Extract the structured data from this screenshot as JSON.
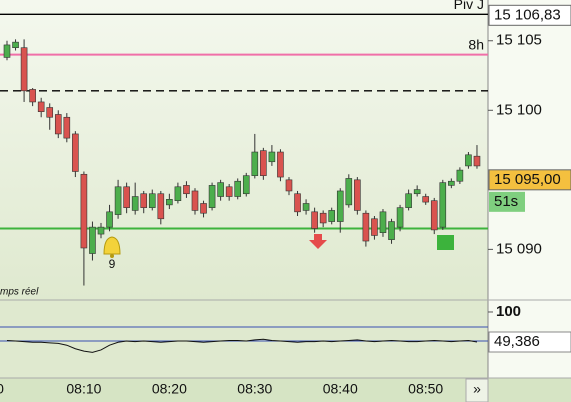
{
  "chart_data": [
    {
      "type": "candlestick",
      "annotation": "mps réel",
      "left_time_label": "0",
      "categories": [
        null,
        null,
        null,
        null,
        null,
        null,
        null,
        null,
        null,
        "08:10",
        null,
        null,
        null,
        null,
        null,
        null,
        null,
        null,
        null,
        "08:20",
        null,
        null,
        null,
        null,
        null,
        null,
        null,
        null,
        null,
        "08:30",
        null,
        null,
        null,
        null,
        null,
        null,
        null,
        null,
        null,
        "08:40",
        null,
        null,
        null,
        null,
        null,
        null,
        null,
        null,
        null,
        "08:50",
        null,
        null,
        null,
        null,
        null,
        null
      ],
      "open": [
        15103.8,
        15104.5,
        15104.5,
        15101.5,
        15100.6,
        15100.2,
        15099.7,
        15099.5,
        15098.3,
        15095.4,
        15089.7,
        15091.1,
        15091.6,
        15092.5,
        15094.5,
        15092.8,
        15094.0,
        15093.0,
        15094.0,
        15093.2,
        15093.5,
        15094.6,
        15094.2,
        15093.3,
        15093.0,
        15093.8,
        15094.5,
        15093.8,
        15094.0,
        15095.3,
        15097.1,
        15096.3,
        15097.0,
        15095.0,
        15094.0,
        15092.8,
        15092.7,
        15092.6,
        15092.0,
        15092.0,
        15093.2,
        15095.0,
        15092.6,
        15092.2,
        15091.2,
        15090.7,
        15091.6,
        15093.0,
        15094.0,
        15093.8,
        15093.5,
        15091.6,
        15094.6,
        15094.9,
        15096.0,
        15096.7
      ],
      "high": [
        15105.0,
        15105.1,
        15105.1,
        15101.6,
        15100.9,
        15100.5,
        15100.0,
        15099.8,
        15098.5,
        15095.6,
        15092.0,
        15091.9,
        15093.2,
        15095.0,
        15094.8,
        15094.8,
        15094.2,
        15094.3,
        15094.2,
        15094.0,
        15094.8,
        15094.9,
        15094.4,
        15093.5,
        15094.8,
        15095.0,
        15094.7,
        15095.1,
        15095.5,
        15098.3,
        15097.3,
        15097.5,
        15097.2,
        15095.2,
        15094.2,
        15093.6,
        15093.0,
        15092.8,
        15093.0,
        15094.4,
        15095.4,
        15095.2,
        15092.8,
        15092.4,
        15092.9,
        15092.2,
        15093.2,
        15094.3,
        15094.6,
        15094.0,
        15093.7,
        15095.0,
        15095.1,
        15095.9,
        15097.0,
        15097.5
      ],
      "low": [
        15103.6,
        15104.3,
        15100.6,
        15100.3,
        15099.5,
        15098.6,
        15098.0,
        15097.7,
        15095.2,
        15087.4,
        15089.2,
        15090.8,
        15091.3,
        15092.2,
        15092.6,
        15092.5,
        15092.6,
        15092.8,
        15091.8,
        15092.9,
        15093.3,
        15093.7,
        15092.5,
        15092.3,
        15092.8,
        15093.5,
        15093.5,
        15093.6,
        15093.8,
        15095.1,
        15095.0,
        15096.0,
        15094.9,
        15093.9,
        15092.4,
        15092.5,
        15091.2,
        15091.6,
        15091.8,
        15091.2,
        15093.0,
        15092.5,
        15090.2,
        15090.7,
        15090.9,
        15090.4,
        15091.3,
        15092.8,
        15093.8,
        15093.2,
        15091.1,
        15091.4,
        15094.4,
        15094.7,
        15095.8,
        15095.8
      ],
      "close": [
        15104.7,
        15104.9,
        15101.4,
        15100.6,
        15099.9,
        15099.5,
        15098.3,
        15098.0,
        15095.6,
        15090.1,
        15091.6,
        15091.6,
        15092.7,
        15094.5,
        15093.0,
        15093.8,
        15093.0,
        15094.0,
        15092.2,
        15093.6,
        15094.5,
        15094.0,
        15092.8,
        15092.6,
        15094.6,
        15094.8,
        15093.8,
        15094.9,
        15095.3,
        15097.0,
        15095.3,
        15097.0,
        15095.2,
        15094.2,
        15092.7,
        15093.3,
        15091.5,
        15091.9,
        15092.8,
        15094.2,
        15095.1,
        15092.8,
        15090.6,
        15091.0,
        15092.7,
        15092.0,
        15093.0,
        15094.0,
        15094.3,
        15093.4,
        15091.4,
        15094.8,
        15094.9,
        15095.7,
        15096.8,
        15096.0
      ],
      "up_color": "#4cae4c",
      "down_color": "#d9534f",
      "ylim": [
        15086.36,
        15107.93
      ],
      "yticks": [
        {
          "value": 15105,
          "label": "15 105"
        },
        {
          "value": 15100,
          "label": "15 100"
        },
        {
          "value": 15090,
          "label": "15 090"
        }
      ],
      "levels": [
        {
          "name": "Piv J",
          "value": 15106.9,
          "color": "#000000",
          "dash": false
        },
        {
          "name": "8h",
          "value": 15104.0,
          "color": "#f06fa8",
          "dash": false
        },
        {
          "value": 15101.4,
          "color": "#000000",
          "dash": true
        },
        {
          "value": 15091.5,
          "color": "#3cb33c",
          "dash": false
        }
      ],
      "price_tags": [
        {
          "value": 15106.83,
          "label": "15 106,83",
          "color": "#ffffff"
        },
        {
          "value": 15095.0,
          "label": "15 095,00",
          "color": "#f4c03f"
        }
      ],
      "countdown": "51s",
      "alert_label": "9"
    },
    {
      "type": "line",
      "values": [
        52,
        51,
        50,
        49,
        49,
        48,
        47,
        44,
        38,
        34,
        32,
        36,
        44,
        49,
        51,
        50,
        51,
        50,
        49,
        50,
        51,
        51,
        50,
        49,
        50,
        51,
        52,
        52,
        51,
        53,
        54,
        52,
        51,
        50,
        49,
        50,
        50,
        51,
        50,
        51,
        52,
        53,
        51,
        50,
        51,
        52,
        51,
        50,
        50,
        51,
        52,
        51,
        50,
        51,
        52,
        49.386
      ],
      "last_label": "49,386",
      "color": "#111111",
      "ylim": [
        -11.3,
        120.2
      ],
      "yticks": [
        100
      ],
      "levels": [
        74.7,
        51.1
      ]
    }
  ]
}
